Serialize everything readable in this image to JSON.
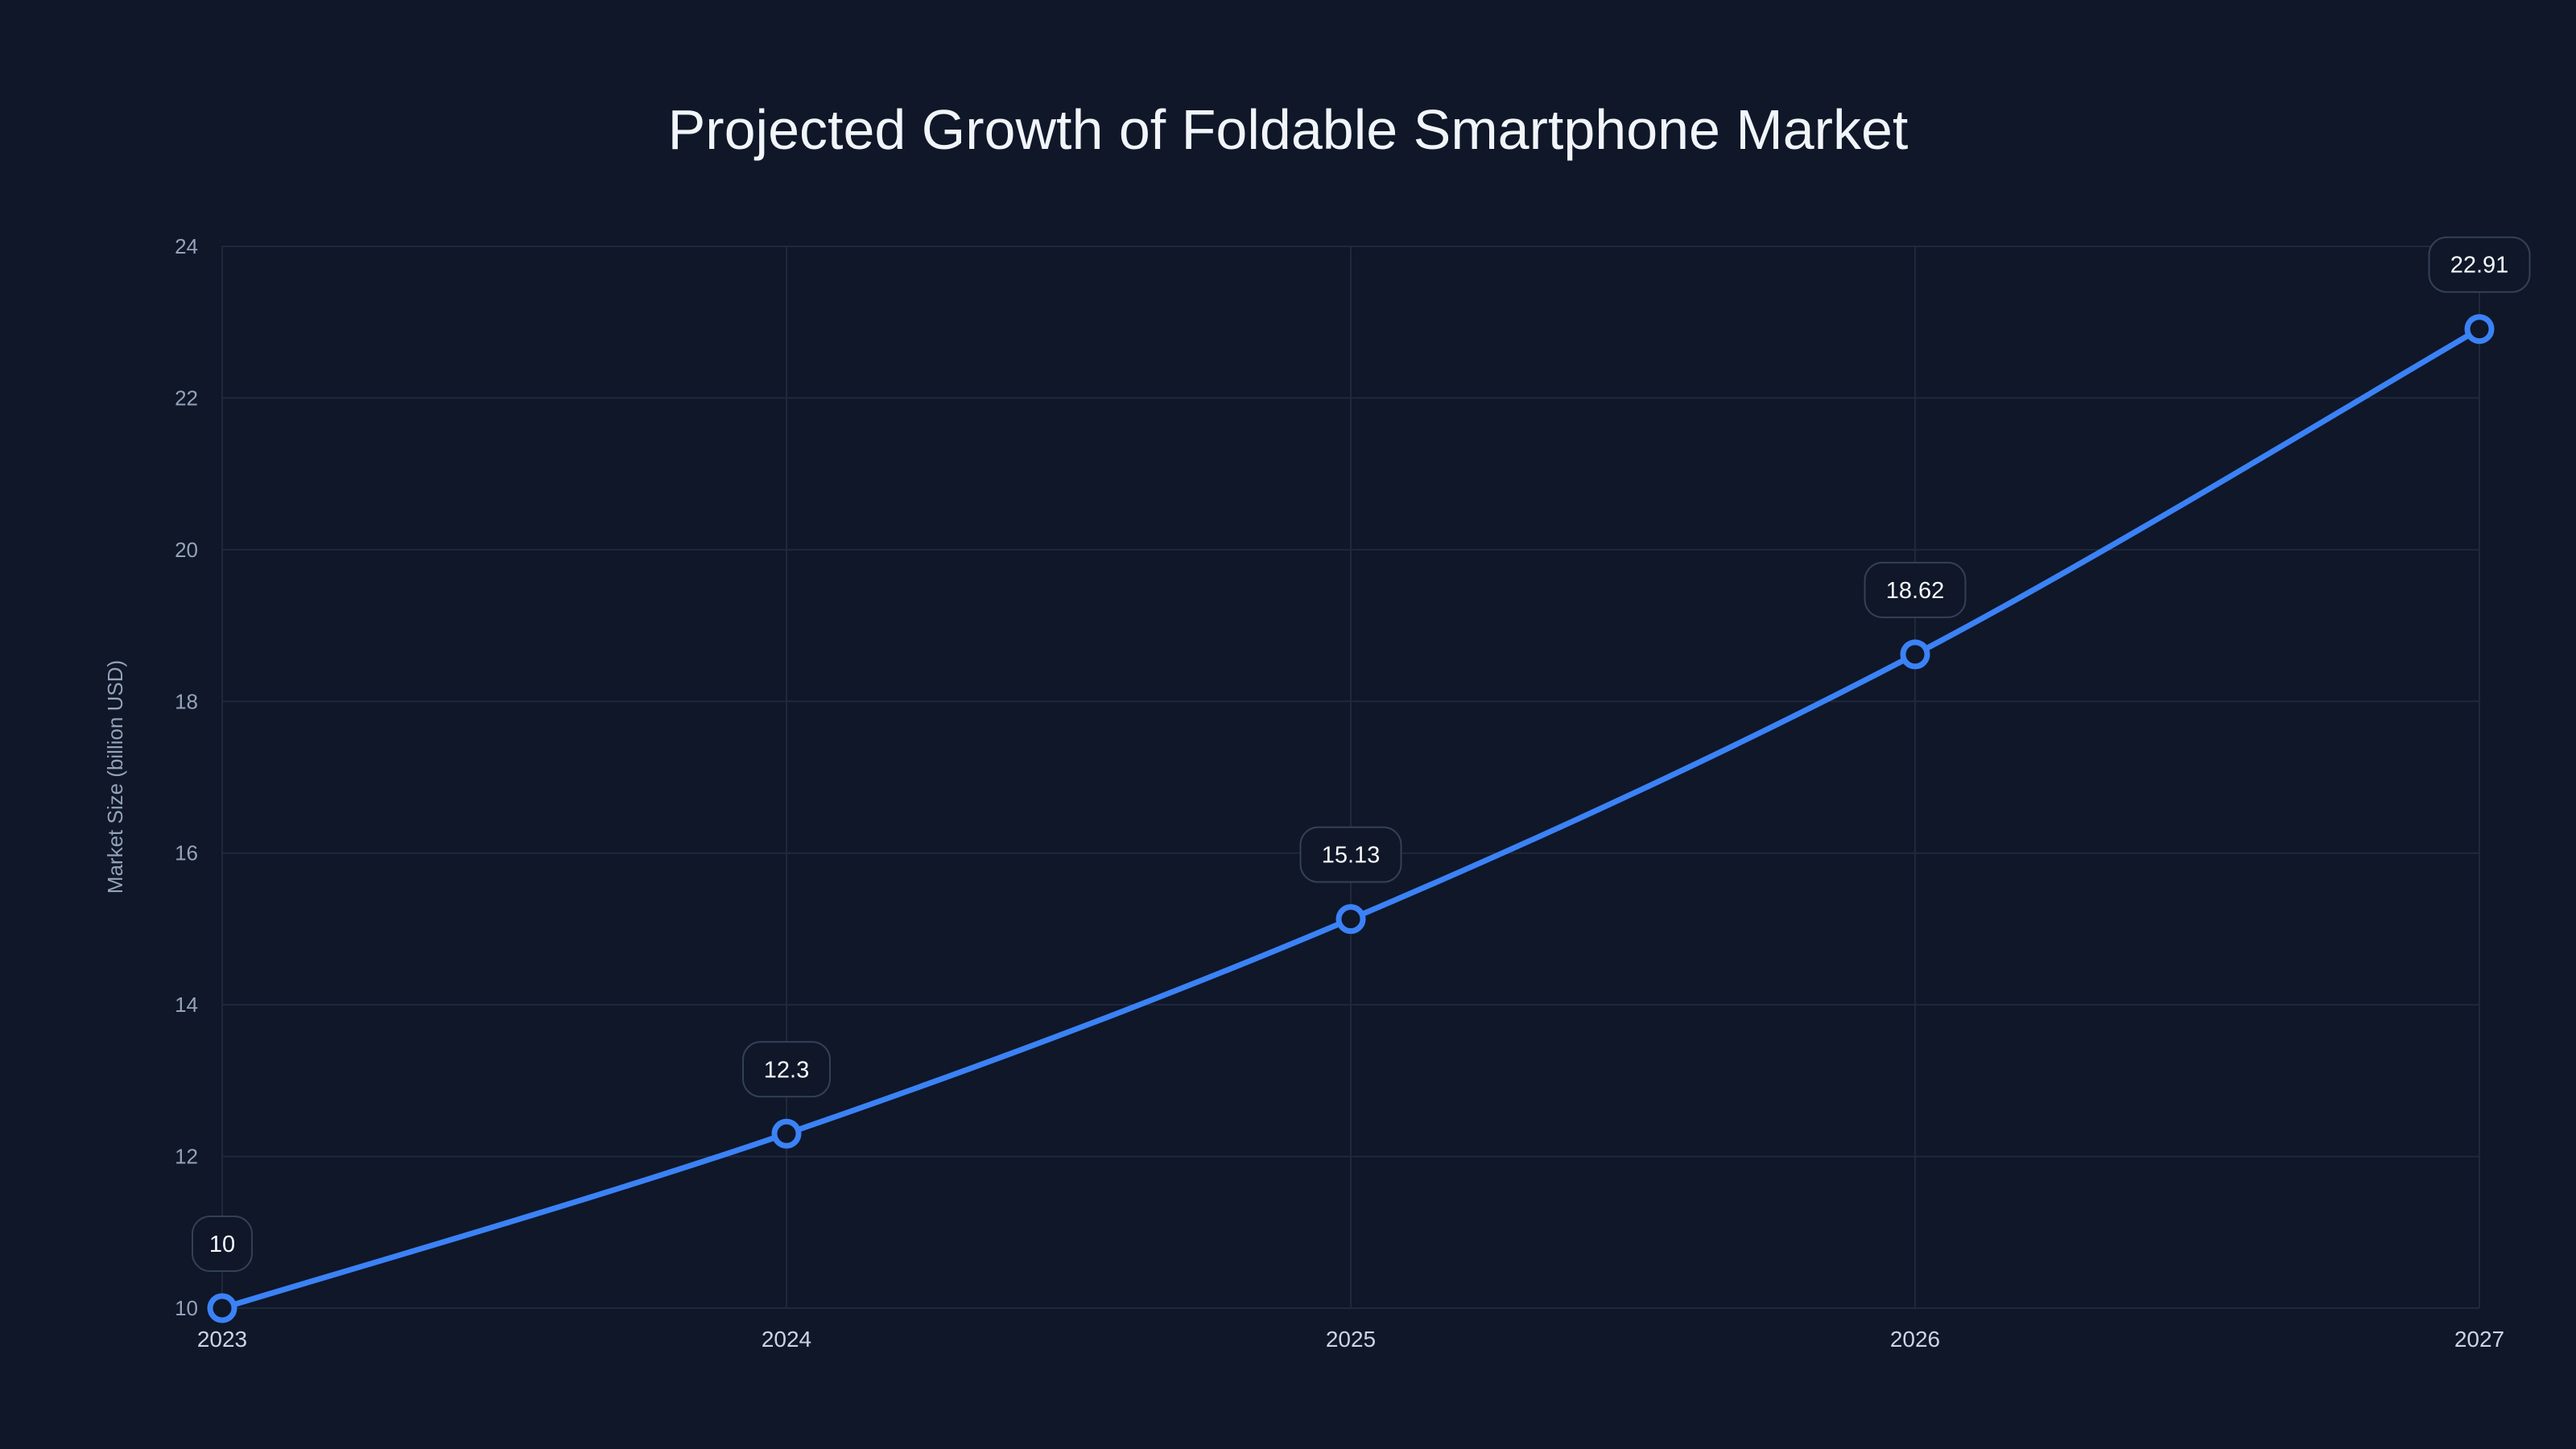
{
  "chart_data": {
    "type": "line",
    "title": "Projected Growth of Foldable Smartphone Market",
    "xlabel": "",
    "ylabel": "Market Size (billion USD)",
    "categories": [
      "2023",
      "2024",
      "2025",
      "2026",
      "2027"
    ],
    "series": [
      {
        "name": "Market Size",
        "values": [
          10,
          12.3,
          15.13,
          18.62,
          22.91
        ],
        "labels": [
          "10",
          "12.3",
          "15.13",
          "18.62",
          "22.91"
        ]
      }
    ],
    "ylim": [
      10,
      24
    ],
    "yticks": [
      10,
      12,
      14,
      16,
      18,
      20,
      22,
      24
    ],
    "grid": true,
    "legend": "none",
    "colors": {
      "line": "#3b82f6",
      "background": "#0f1729",
      "grid": "#1e293b",
      "text": "#94a3b8"
    }
  }
}
